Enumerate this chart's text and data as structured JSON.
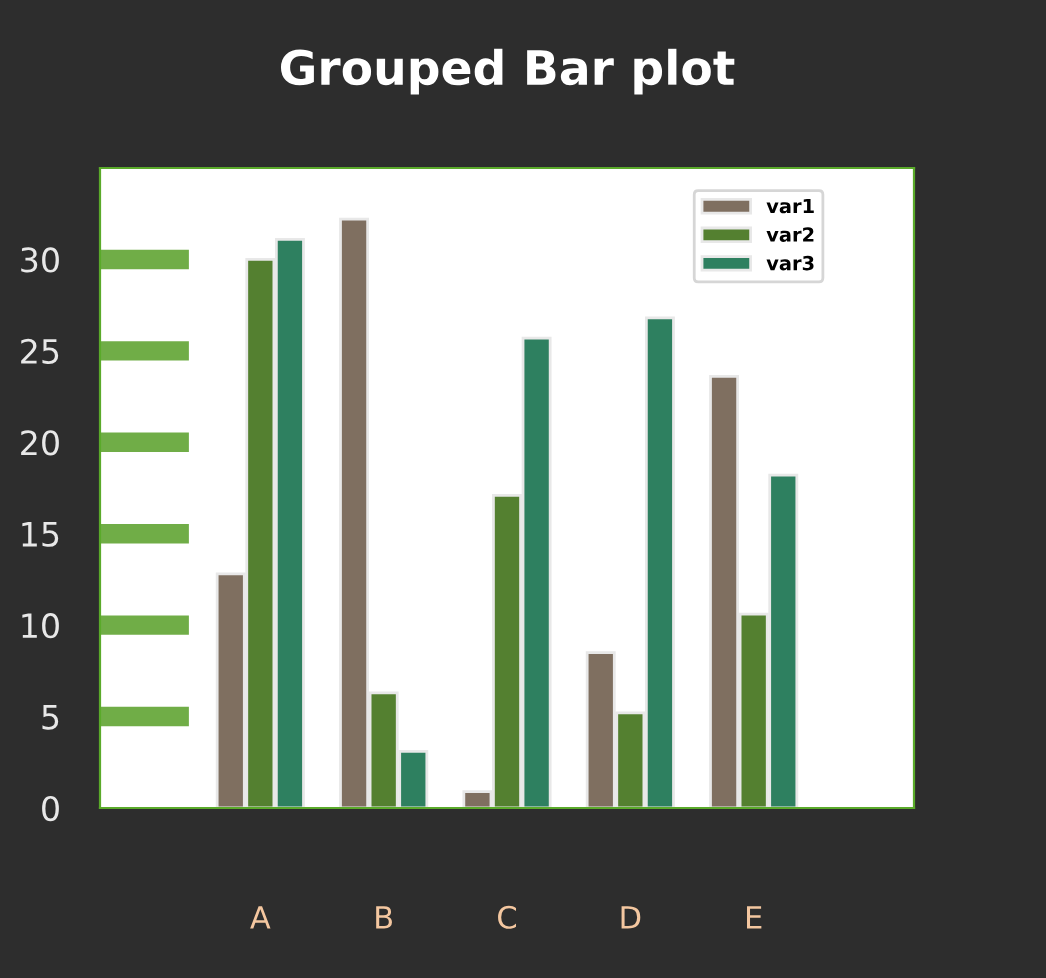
{
  "chart_data": {
    "type": "bar",
    "title": "Grouped Bar plot",
    "categories": [
      "A",
      "B",
      "C",
      "D",
      "E"
    ],
    "series": [
      {
        "name": "var1",
        "color": "#7f6f60",
        "values": [
          12.8,
          32.2,
          0.9,
          8.5,
          23.6
        ]
      },
      {
        "name": "var2",
        "color": "#548030",
        "values": [
          30.0,
          6.3,
          17.1,
          5.2,
          10.6
        ]
      },
      {
        "name": "var3",
        "color": "#2e8060",
        "values": [
          31.1,
          3.1,
          25.7,
          26.8,
          18.2
        ]
      }
    ],
    "ylim": [
      0,
      35
    ],
    "yticks": [
      0,
      5,
      10,
      15,
      20,
      25,
      30
    ],
    "grid": false,
    "legend": "top right"
  }
}
